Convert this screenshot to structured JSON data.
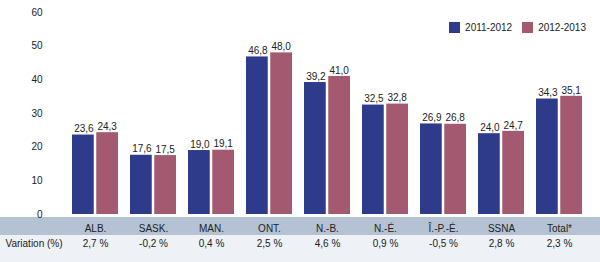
{
  "chart_data": {
    "type": "bar",
    "categories": [
      "ALB.",
      "SASK.",
      "MAN.",
      "ONT.",
      "N.-B.",
      "N.-É.",
      "Î.-P.-É.",
      "SSNA",
      "Total*"
    ],
    "series": [
      {
        "name": "2011-2012",
        "color": "#2e3b8a",
        "values": [
          23.6,
          17.6,
          19.0,
          46.8,
          39.2,
          32.5,
          26.9,
          24.0,
          34.3
        ],
        "value_labels": [
          "23,6",
          "17,6",
          "19,0",
          "46,8",
          "39,2",
          "32,5",
          "26,9",
          "24,0",
          "34,3"
        ]
      },
      {
        "name": "2012-2013",
        "color": "#a3596f",
        "values": [
          24.3,
          17.5,
          19.1,
          48.0,
          41.0,
          32.8,
          26.8,
          24.7,
          35.1
        ],
        "value_labels": [
          "24,3",
          "17,5",
          "19,1",
          "48,0",
          "41,0",
          "32,8",
          "26,8",
          "24,7",
          "35,1"
        ]
      }
    ],
    "ylim": [
      0,
      60
    ],
    "yticks": [
      0,
      10,
      20,
      30,
      40,
      50,
      60
    ],
    "grid": false,
    "legend": "top-right",
    "data_labels": true,
    "variation": {
      "label": "Variation (%)",
      "values": [
        2.7,
        -0.2,
        0.4,
        2.5,
        4.6,
        0.9,
        -0.5,
        2.8,
        2.3
      ],
      "value_labels": [
        "2,7 %",
        "-0,2 %",
        "0,4 %",
        "2,5 %",
        "4,6 %",
        "0,9 %",
        "-0,5 %",
        "2,8 %",
        "2,3 %"
      ]
    }
  }
}
